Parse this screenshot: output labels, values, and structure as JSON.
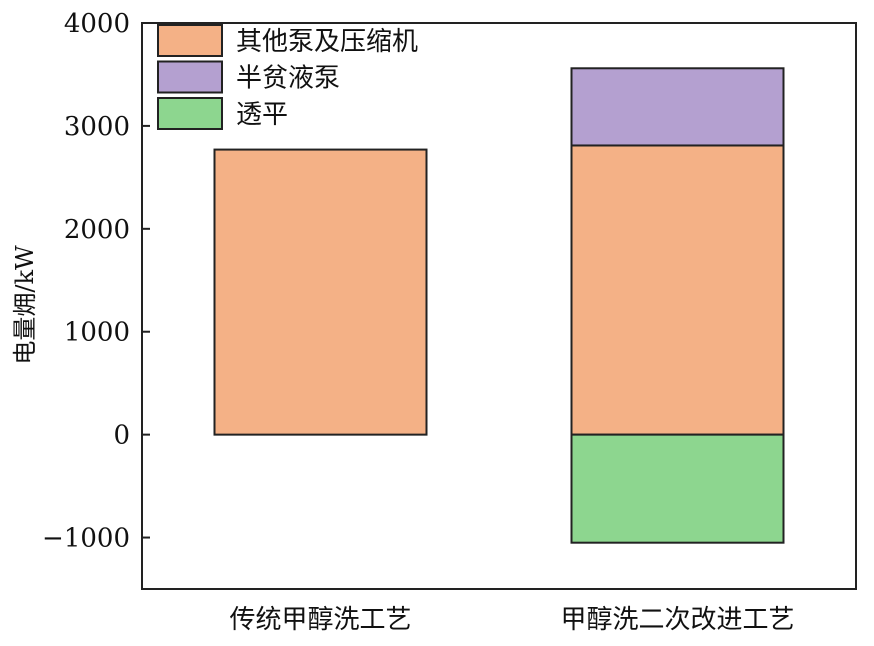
{
  "chart_data": {
    "type": "bar",
    "stacked": true,
    "title": "",
    "xlabel": "",
    "ylabel": "电量㶲/kW",
    "ylim": [
      -1500,
      4000
    ],
    "yticks": [
      -1000,
      0,
      1000,
      2000,
      3000,
      4000
    ],
    "ytick_labels": [
      "−1000",
      "0",
      "1000",
      "2000",
      "3000",
      "4000"
    ],
    "categories": [
      "传统甲醇洗工艺",
      "甲醇洗二次改进工艺"
    ],
    "series": [
      {
        "name": "其他泵及压缩机",
        "color": "#f4b186",
        "values": [
          2770,
          2810
        ]
      },
      {
        "name": "半贫液泵",
        "color": "#b4a0d0",
        "values": [
          0,
          750
        ]
      },
      {
        "name": "透平",
        "color": "#8dd68f",
        "values": [
          0,
          -1050
        ]
      }
    ],
    "legend_position": "top-left",
    "grid": false
  }
}
